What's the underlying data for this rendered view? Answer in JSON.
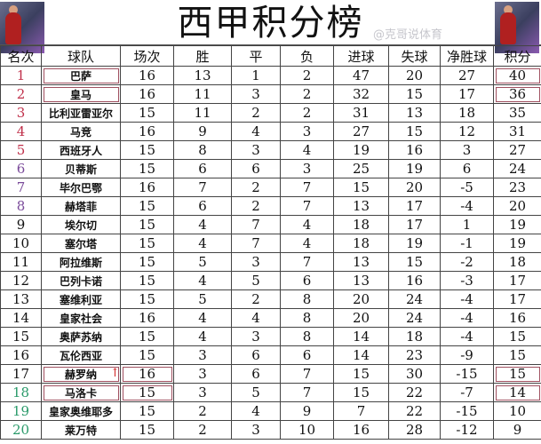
{
  "title": "西甲积分榜",
  "headers": [
    "名次",
    "球队",
    "场次",
    "胜",
    "平",
    "负",
    "进球",
    "失球",
    "净胜球",
    "积分"
  ],
  "rank_colors": {
    "champions": "#c0304a",
    "europe": "#7a4a9a",
    "normal": "#111111",
    "relegation": "#2a9a6a"
  },
  "rows": [
    [
      "1",
      "巴萨",
      "16",
      "13",
      "1",
      "2",
      "47",
      "20",
      "27",
      "40"
    ],
    [
      "2",
      "皇马",
      "16",
      "11",
      "3",
      "2",
      "32",
      "15",
      "17",
      "36"
    ],
    [
      "3",
      "比利亚雷亚尔",
      "15",
      "11",
      "2",
      "2",
      "31",
      "13",
      "18",
      "35"
    ],
    [
      "4",
      "马竞",
      "16",
      "9",
      "4",
      "3",
      "27",
      "15",
      "12",
      "31"
    ],
    [
      "5",
      "西班牙人",
      "15",
      "8",
      "3",
      "4",
      "19",
      "16",
      "3",
      "27"
    ],
    [
      "6",
      "贝蒂斯",
      "15",
      "6",
      "6",
      "3",
      "25",
      "19",
      "6",
      "24"
    ],
    [
      "7",
      "毕尔巴鄂",
      "16",
      "7",
      "2",
      "7",
      "15",
      "20",
      "-5",
      "23"
    ],
    [
      "8",
      "赫塔菲",
      "15",
      "6",
      "2",
      "7",
      "13",
      "17",
      "-4",
      "20"
    ],
    [
      "9",
      "埃尔切",
      "15",
      "4",
      "7",
      "4",
      "18",
      "17",
      "1",
      "19"
    ],
    [
      "10",
      "塞尔塔",
      "15",
      "4",
      "7",
      "4",
      "18",
      "19",
      "-1",
      "19"
    ],
    [
      "11",
      "阿拉维斯",
      "15",
      "5",
      "3",
      "7",
      "13",
      "15",
      "-2",
      "18"
    ],
    [
      "12",
      "巴列卡诺",
      "15",
      "4",
      "5",
      "6",
      "13",
      "16",
      "-3",
      "17"
    ],
    [
      "13",
      "塞维利亚",
      "15",
      "5",
      "2",
      "8",
      "20",
      "24",
      "-4",
      "17"
    ],
    [
      "14",
      "皇家社会",
      "16",
      "4",
      "4",
      "8",
      "20",
      "24",
      "-4",
      "16"
    ],
    [
      "15",
      "奥萨苏纳",
      "15",
      "4",
      "3",
      "8",
      "14",
      "18",
      "-4",
      "15"
    ],
    [
      "16",
      "瓦伦西亚",
      "15",
      "3",
      "6",
      "6",
      "14",
      "23",
      "-9",
      "15"
    ],
    [
      "17",
      "赫罗纳",
      "16",
      "3",
      "6",
      "7",
      "15",
      "30",
      "-15",
      "15"
    ],
    [
      "18",
      "马洛卡",
      "15",
      "3",
      "5",
      "7",
      "15",
      "22",
      "-7",
      "14"
    ],
    [
      "19",
      "皇家奥维耶多",
      "15",
      "2",
      "4",
      "9",
      "7",
      "22",
      "-15",
      "10"
    ],
    [
      "20",
      "莱万特",
      "15",
      "2",
      "3",
      "10",
      "16",
      "28",
      "-12",
      "9"
    ]
  ],
  "arrow_icon": "up-arrow",
  "watermark": "@克哥说体育"
}
